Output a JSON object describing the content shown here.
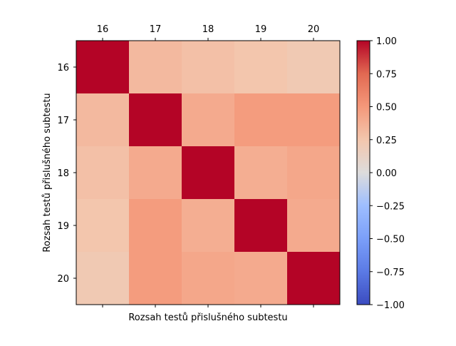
{
  "chart_data": {
    "type": "heatmap",
    "title": "",
    "xlabel": "Rozsah testů přislušného subtestu",
    "ylabel": "Rozsah testů přislušného subtestu",
    "x_tick_position": "top",
    "x_categories": [
      "16",
      "17",
      "18",
      "19",
      "20"
    ],
    "y_categories": [
      "16",
      "17",
      "18",
      "19",
      "20"
    ],
    "values": [
      [
        1.0,
        0.32,
        0.28,
        0.25,
        0.22
      ],
      [
        0.32,
        1.0,
        0.4,
        0.48,
        0.48
      ],
      [
        0.28,
        0.4,
        1.0,
        0.38,
        0.42
      ],
      [
        0.25,
        0.48,
        0.38,
        1.0,
        0.4
      ],
      [
        0.22,
        0.48,
        0.42,
        0.4,
        1.0
      ]
    ],
    "colormap": "coolwarm",
    "vmin": -1.0,
    "vmax": 1.0,
    "colorbar_ticks": [
      "1.00",
      "0.75",
      "0.50",
      "0.25",
      "0.00",
      "−0.25",
      "−0.50",
      "−0.75",
      "−1.00"
    ],
    "colorbar_tick_values": [
      1.0,
      0.75,
      0.5,
      0.25,
      0.0,
      -0.25,
      -0.5,
      -0.75,
      -1.0
    ]
  }
}
